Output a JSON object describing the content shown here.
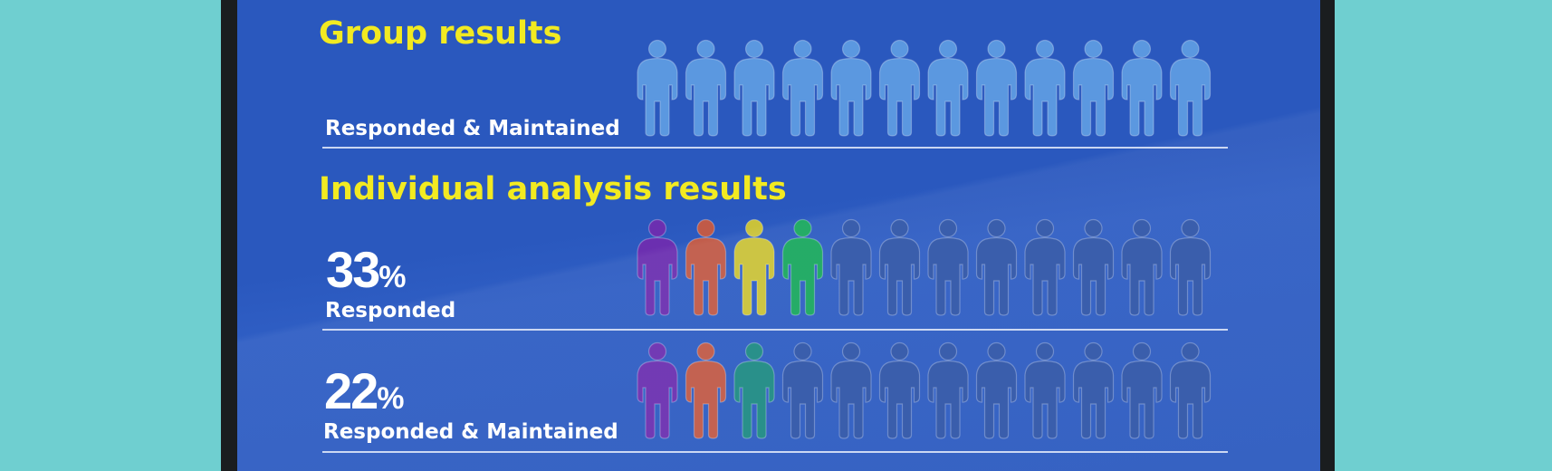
{
  "group": {
    "title": "Group results",
    "row": {
      "label": "Responded & Maintained",
      "figures": [
        "#5b98e0",
        "#5b98e0",
        "#5b98e0",
        "#5b98e0",
        "#5b98e0",
        "#5b98e0",
        "#5b98e0",
        "#5b98e0",
        "#5b98e0",
        "#5b98e0",
        "#5b98e0",
        "#5b98e0"
      ]
    }
  },
  "individual": {
    "title": "Individual analysis results",
    "rows": [
      {
        "value": "33",
        "unit": "%",
        "label": "Responded",
        "figures": [
          "#6b2fb0",
          "#c05a48",
          "#c9c23a",
          "#19a85f",
          "#2f55a8",
          "#2f55a8",
          "#2f55a8",
          "#2f55a8",
          "#2f55a8",
          "#2f55a8",
          "#2f55a8",
          "#2f55a8"
        ]
      },
      {
        "value": "22",
        "unit": "%",
        "label": "Responded & Maintained",
        "figures": [
          "#6b2fb0",
          "#c05a48",
          "#1e8a84",
          "#2f55a8",
          "#2f55a8",
          "#2f55a8",
          "#2f55a8",
          "#2f55a8",
          "#2f55a8",
          "#2f55a8",
          "#2f55a8",
          "#2f55a8"
        ]
      }
    ]
  },
  "icons": {
    "figure": "person-icon"
  },
  "colors": {
    "heading": "#f2ea21",
    "screen": "#2a58be",
    "backdrop": "#6fcfd0",
    "frame": "#1a1d1f"
  }
}
